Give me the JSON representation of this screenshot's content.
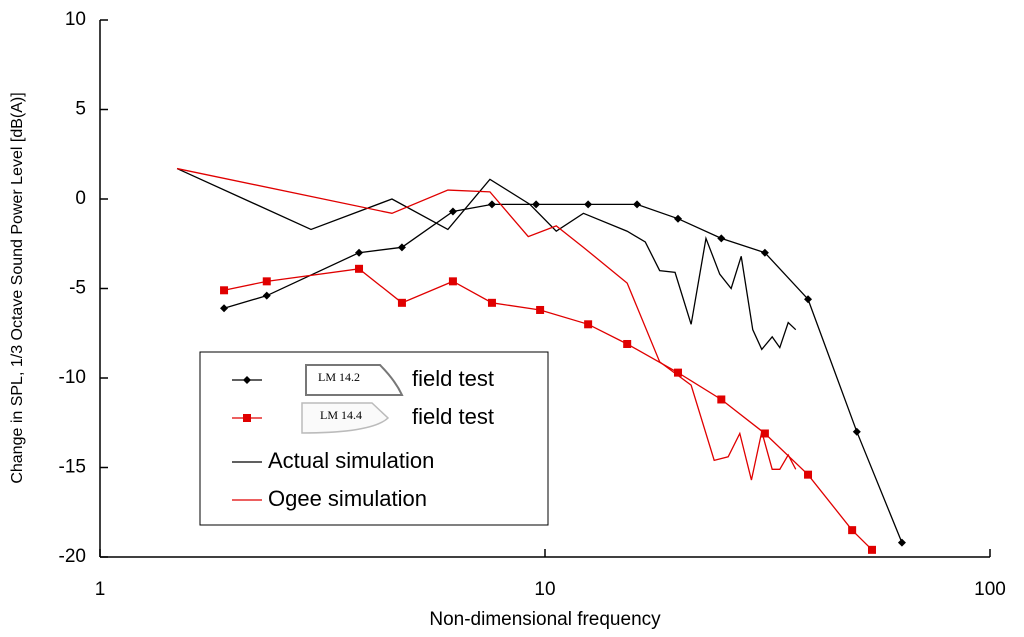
{
  "chart_data": {
    "type": "line",
    "xlabel": "Non-dimensional frequency",
    "ylabel": "Change in SPL, 1/3 Octave Sound Power Level [dB(A)]",
    "xscale": "log",
    "xlim": [
      1,
      100
    ],
    "xticks": [
      1,
      10,
      100
    ],
    "ylim": [
      -20,
      10
    ],
    "yticks": [
      -20,
      -15,
      -10,
      -5,
      0,
      5,
      10
    ],
    "grid": false,
    "legend": "lower left",
    "series": [
      {
        "name": "field test",
        "icon_label": "LM 14.2",
        "color": "#000000",
        "marker": "diamond",
        "x": [
          1.9,
          2.37,
          3.82,
          4.77,
          6.21,
          7.6,
          9.55,
          12.5,
          16.1,
          19.9,
          24.9,
          31.2,
          39.0,
          50.2,
          63.4
        ],
        "values": [
          -6.1,
          -5.4,
          -3.0,
          -2.7,
          -0.7,
          -0.3,
          -0.3,
          -0.3,
          -0.3,
          -1.1,
          -2.2,
          -3.0,
          -5.6,
          -13.0,
          -19.2
        ]
      },
      {
        "name": "field test",
        "icon_label": "LM 14.4",
        "color": "#e00000",
        "marker": "square",
        "x": [
          1.9,
          2.37,
          3.82,
          4.77,
          6.21,
          7.6,
          9.75,
          12.5,
          15.3,
          19.9,
          24.9,
          31.2,
          39.0,
          49.0,
          54.3
        ],
        "values": [
          -5.1,
          -4.6,
          -3.9,
          -5.8,
          -4.6,
          -5.8,
          -6.2,
          -7.0,
          -8.1,
          -9.7,
          -11.2,
          -13.1,
          -15.4,
          -18.5,
          -19.6
        ]
      },
      {
        "name": "Actual simulation",
        "color": "#000000",
        "marker": "none",
        "x": [
          1.49,
          2.98,
          4.53,
          6.05,
          7.52,
          9.25,
          10.6,
          12.2,
          15.3,
          16.8,
          18.1,
          19.6,
          21.3,
          23.0,
          24.7,
          26.2,
          27.6,
          29.3,
          30.7,
          32.4,
          33.7,
          35.2,
          36.6
        ],
        "values": [
          1.7,
          -1.7,
          0.0,
          -1.7,
          1.1,
          -0.3,
          -1.8,
          -0.8,
          -1.8,
          -2.4,
          -4.0,
          -4.1,
          -7.0,
          -2.2,
          -4.2,
          -5.0,
          -3.2,
          -7.3,
          -8.4,
          -7.7,
          -8.3,
          -6.9,
          -7.3
        ]
      },
      {
        "name": "Ogee simulation",
        "color": "#e00000",
        "marker": "none",
        "x": [
          1.49,
          4.53,
          6.05,
          7.52,
          9.17,
          10.6,
          12.2,
          15.3,
          18.1,
          21.3,
          24.0,
          25.8,
          27.4,
          29.1,
          30.7,
          32.4,
          33.7,
          35.2,
          36.6
        ],
        "values": [
          1.7,
          -0.8,
          0.5,
          0.4,
          -2.1,
          -1.5,
          -2.7,
          -4.7,
          -9.1,
          -10.4,
          -14.6,
          -14.4,
          -13.1,
          -15.7,
          -13.0,
          -15.1,
          -15.1,
          -14.3,
          -15.1
        ]
      }
    ]
  }
}
